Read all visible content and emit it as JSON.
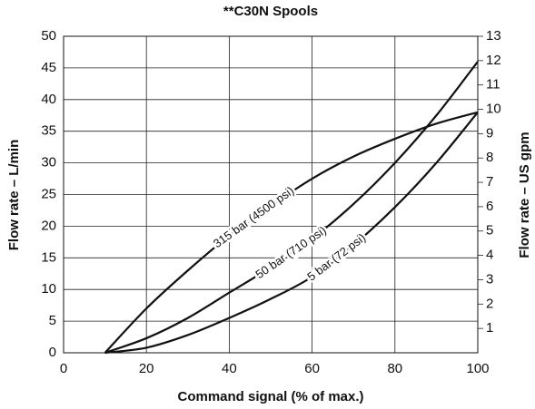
{
  "chart_data": {
    "type": "line",
    "title": "**C30N Spools",
    "x_label": "Command signal (% of max.)",
    "y_label": "Flow rate – L/min",
    "y2_label": "Flow rate – US gpm",
    "x": [
      10,
      20,
      30,
      40,
      50,
      60,
      70,
      80,
      90,
      100
    ],
    "series": [
      {
        "name": "315 bar (4500 psi)",
        "color": "#111111",
        "values": [
          0,
          7,
          13,
          18.5,
          23.2,
          27.5,
          31,
          33.8,
          36.2,
          38
        ]
      },
      {
        "name": "50 bar (710 psi)",
        "color": "#111111",
        "values": [
          0,
          2.3,
          5.5,
          9.5,
          13.5,
          18,
          23.5,
          30,
          37.5,
          46
        ]
      },
      {
        "name": "5 bar (72 psi)",
        "color": "#111111",
        "values": [
          0,
          0.8,
          2.8,
          5.5,
          8.5,
          12,
          17,
          23,
          30,
          38
        ]
      }
    ],
    "xlim": [
      0,
      100
    ],
    "xticks": [
      0,
      20,
      40,
      60,
      80,
      100
    ],
    "ylim": [
      0,
      50
    ],
    "yticks": [
      0,
      5,
      10,
      15,
      20,
      25,
      30,
      35,
      40,
      45,
      50
    ],
    "y2lim": [
      0,
      13
    ],
    "y2ticks": [
      1,
      2,
      3,
      4,
      5,
      6,
      7,
      8,
      9,
      10,
      11,
      12,
      13
    ],
    "grid": true
  }
}
